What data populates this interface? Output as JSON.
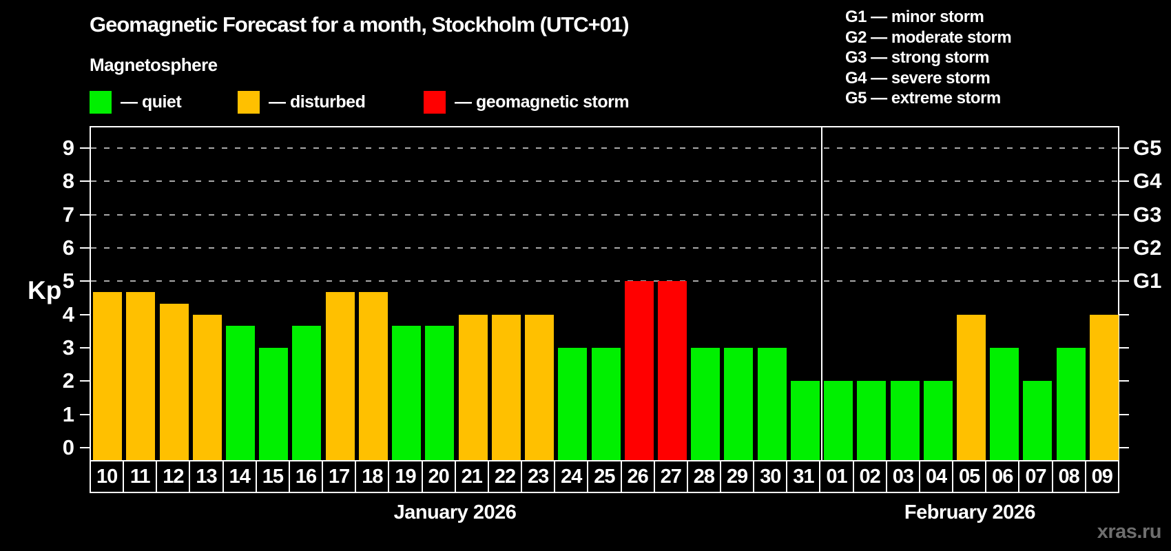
{
  "header": {
    "title": "Geomagnetic Forecast for a month, Stockholm (UTC+01)",
    "subtitle": "Magnetosphere"
  },
  "legend": {
    "items": [
      {
        "status": "quiet",
        "label": "— quiet",
        "color": "#00f000"
      },
      {
        "status": "disturbed",
        "label": "— disturbed",
        "color": "#ffc000"
      },
      {
        "status": "storm",
        "label": "— geomagnetic storm",
        "color": "#ff0000"
      }
    ]
  },
  "g_scale_legend": {
    "lines": [
      "G1 — minor storm",
      "G2 — moderate storm",
      "G3 — strong storm",
      "G4 — severe storm",
      "G5 — extreme storm"
    ]
  },
  "chart_data": {
    "type": "bar",
    "title": "Geomagnetic Forecast for a month, Stockholm (UTC+01)",
    "ylabel": "Kp",
    "ylim": [
      0,
      9.6
    ],
    "y_ticks": [
      0,
      1,
      2,
      3,
      4,
      5,
      6,
      7,
      8,
      9
    ],
    "gridlines_at": [
      5,
      6,
      7,
      8,
      9
    ],
    "grid_style": "dashed gray horizontal",
    "right_axis": [
      {
        "kp": 5,
        "label": "G1"
      },
      {
        "kp": 6,
        "label": "G2"
      },
      {
        "kp": 7,
        "label": "G3"
      },
      {
        "kp": 8,
        "label": "G4"
      },
      {
        "kp": 9,
        "label": "G5"
      }
    ],
    "categories": [
      "10",
      "11",
      "12",
      "13",
      "14",
      "15",
      "16",
      "17",
      "18",
      "19",
      "20",
      "21",
      "22",
      "23",
      "24",
      "25",
      "26",
      "27",
      "28",
      "29",
      "30",
      "31",
      "01",
      "02",
      "03",
      "04",
      "05",
      "06",
      "07",
      "08",
      "09"
    ],
    "values": [
      4.67,
      4.67,
      4.33,
      4.0,
      3.67,
      3.0,
      3.67,
      4.67,
      4.67,
      3.67,
      3.67,
      4.0,
      4.0,
      4.0,
      3.0,
      3.0,
      5.0,
      5.0,
      3.0,
      3.0,
      3.0,
      2.0,
      2.0,
      2.0,
      2.0,
      2.0,
      4.0,
      3.0,
      2.0,
      3.0,
      4.0
    ],
    "statuses": [
      "disturbed",
      "disturbed",
      "disturbed",
      "disturbed",
      "quiet",
      "quiet",
      "quiet",
      "disturbed",
      "disturbed",
      "quiet",
      "quiet",
      "disturbed",
      "disturbed",
      "disturbed",
      "quiet",
      "quiet",
      "storm",
      "storm",
      "quiet",
      "quiet",
      "quiet",
      "quiet",
      "quiet",
      "quiet",
      "quiet",
      "quiet",
      "disturbed",
      "quiet",
      "quiet",
      "quiet",
      "disturbed"
    ],
    "status_colors": {
      "quiet": "#00f000",
      "disturbed": "#ffc000",
      "storm": "#ff0000"
    },
    "separator_after_index": 21,
    "months": [
      {
        "label": "January 2026",
        "from_index": 0,
        "to_index": 21
      },
      {
        "label": "February 2026",
        "from_index": 22,
        "to_index": 30
      }
    ]
  },
  "watermark": "xras.ru"
}
